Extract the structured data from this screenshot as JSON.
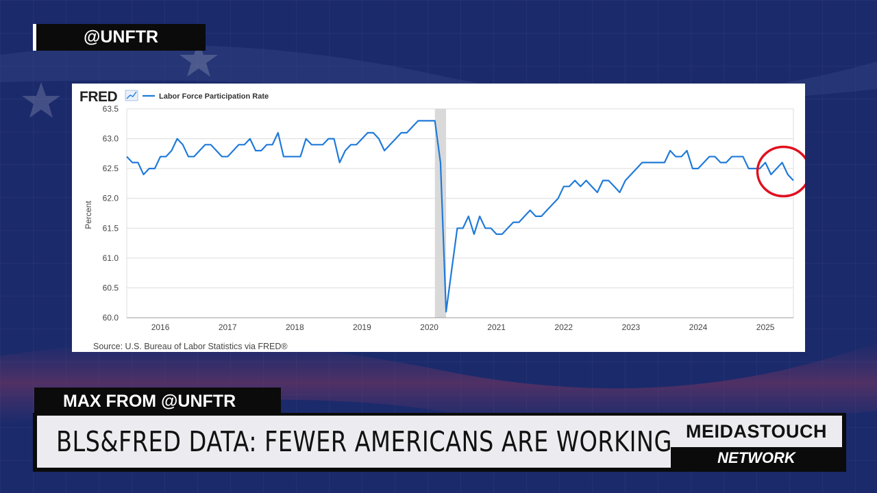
{
  "overlay": {
    "handle": "@UNFTR",
    "speaker": "MAX FROM @UNFTR",
    "headline": "BLS&FRED DATA: FEWER AMERICANS ARE WORKING",
    "brand_top": "MEIDASTOUCH",
    "brand_bottom": "NETWORK"
  },
  "colors": {
    "background": "#1b2a6b",
    "line": "#1f7ad9",
    "recession_shade": "#d9d9d9",
    "highlight_circle": "#e0101e"
  },
  "chart_data": {
    "type": "line",
    "title": "",
    "logo": "FRED",
    "xlabel": "",
    "ylabel": "Percent",
    "ylim": [
      60.0,
      63.5
    ],
    "yticks": [
      "60.0",
      "60.5",
      "61.0",
      "61.5",
      "62.0",
      "62.5",
      "63.0",
      "63.5"
    ],
    "xticks": [
      "2016",
      "2017",
      "2018",
      "2019",
      "2020",
      "2021",
      "2022",
      "2023",
      "2024",
      "2025"
    ],
    "grid": true,
    "legend": "top-left",
    "source": "Source: U.S. Bureau of Labor Statistics via FRED®",
    "recession": [
      "2020-02",
      "2020-04"
    ],
    "annotation": "red circle around 2025 values",
    "series": [
      {
        "name": "Labor Force Participation Rate",
        "x": [
          "2015-07",
          "2015-08",
          "2015-09",
          "2015-10",
          "2015-11",
          "2015-12",
          "2016-01",
          "2016-02",
          "2016-03",
          "2016-04",
          "2016-05",
          "2016-06",
          "2016-07",
          "2016-08",
          "2016-09",
          "2016-10",
          "2016-11",
          "2016-12",
          "2017-01",
          "2017-02",
          "2017-03",
          "2017-04",
          "2017-05",
          "2017-06",
          "2017-07",
          "2017-08",
          "2017-09",
          "2017-10",
          "2017-11",
          "2017-12",
          "2018-01",
          "2018-02",
          "2018-03",
          "2018-04",
          "2018-05",
          "2018-06",
          "2018-07",
          "2018-08",
          "2018-09",
          "2018-10",
          "2018-11",
          "2018-12",
          "2019-01",
          "2019-02",
          "2019-03",
          "2019-04",
          "2019-05",
          "2019-06",
          "2019-07",
          "2019-08",
          "2019-09",
          "2019-10",
          "2019-11",
          "2019-12",
          "2020-01",
          "2020-02",
          "2020-03",
          "2020-04",
          "2020-05",
          "2020-06",
          "2020-07",
          "2020-08",
          "2020-09",
          "2020-10",
          "2020-11",
          "2020-12",
          "2021-01",
          "2021-02",
          "2021-03",
          "2021-04",
          "2021-05",
          "2021-06",
          "2021-07",
          "2021-08",
          "2021-09",
          "2021-10",
          "2021-11",
          "2021-12",
          "2022-01",
          "2022-02",
          "2022-03",
          "2022-04",
          "2022-05",
          "2022-06",
          "2022-07",
          "2022-08",
          "2022-09",
          "2022-10",
          "2022-11",
          "2022-12",
          "2023-01",
          "2023-02",
          "2023-03",
          "2023-04",
          "2023-05",
          "2023-06",
          "2023-07",
          "2023-08",
          "2023-09",
          "2023-10",
          "2023-11",
          "2023-12",
          "2024-01",
          "2024-02",
          "2024-03",
          "2024-04",
          "2024-05",
          "2024-06",
          "2024-07",
          "2024-08",
          "2024-09",
          "2024-10",
          "2024-11",
          "2024-12",
          "2025-01",
          "2025-02",
          "2025-03",
          "2025-04",
          "2025-05",
          "2025-06"
        ],
        "y": [
          62.7,
          62.6,
          62.6,
          62.4,
          62.5,
          62.5,
          62.7,
          62.7,
          62.8,
          63.0,
          62.9,
          62.7,
          62.7,
          62.8,
          62.9,
          62.9,
          62.8,
          62.7,
          62.7,
          62.8,
          62.9,
          62.9,
          63.0,
          62.8,
          62.8,
          62.9,
          62.9,
          63.1,
          62.7,
          62.7,
          62.7,
          62.7,
          63.0,
          62.9,
          62.9,
          62.9,
          63.0,
          63.0,
          62.6,
          62.8,
          62.9,
          62.9,
          63.0,
          63.1,
          63.1,
          63.0,
          62.8,
          62.9,
          63.0,
          63.1,
          63.1,
          63.2,
          63.3,
          63.3,
          63.3,
          63.3,
          62.6,
          60.1,
          60.8,
          61.5,
          61.5,
          61.7,
          61.4,
          61.7,
          61.5,
          61.5,
          61.4,
          61.4,
          61.5,
          61.6,
          61.6,
          61.7,
          61.8,
          61.7,
          61.7,
          61.8,
          61.9,
          62.0,
          62.2,
          62.2,
          62.3,
          62.2,
          62.3,
          62.2,
          62.1,
          62.3,
          62.3,
          62.2,
          62.1,
          62.3,
          62.4,
          62.5,
          62.6,
          62.6,
          62.6,
          62.6,
          62.6,
          62.8,
          62.7,
          62.7,
          62.8,
          62.5,
          62.5,
          62.6,
          62.7,
          62.7,
          62.6,
          62.6,
          62.7,
          62.7,
          62.7,
          62.5,
          62.5,
          62.5,
          62.6,
          62.4,
          62.5,
          62.6,
          62.4,
          62.3
        ]
      }
    ]
  }
}
